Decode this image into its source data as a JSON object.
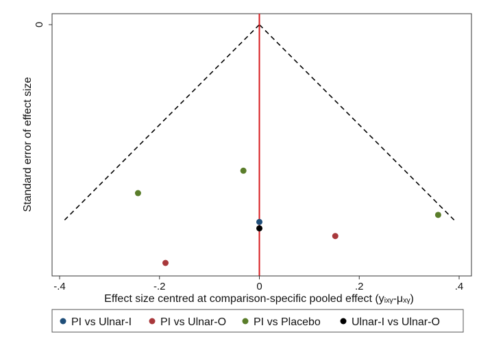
{
  "chart_data": {
    "type": "scatter",
    "title": "",
    "xlabel": "Effect size centred at comparison-specific pooled effect (yᵢₓᵧ-μₓᵧ)",
    "ylabel": "Standard error of effect size",
    "xlim": [
      -0.41,
      0.41
    ],
    "ylim": [
      0,
      0.38
    ],
    "y_reversed": true,
    "x_ticks": [
      -0.4,
      -0.2,
      0,
      0.2,
      0.4
    ],
    "x_tick_labels": [
      "-.4",
      "-.2",
      "0",
      ".2",
      ".4"
    ],
    "y_ticks": [
      0
    ],
    "y_tick_labels": [
      "0"
    ],
    "grid": false,
    "legend_position": "bottom",
    "funnel": {
      "apex": [
        0,
        0
      ],
      "left_end": [
        -0.39,
        0.305
      ],
      "right_end": [
        0.39,
        0.305
      ],
      "color": "#000000",
      "style": "dashed"
    },
    "reference_line": {
      "x": 0,
      "color": "#d7191c"
    },
    "series": [
      {
        "name": "PI vs Ulnar-I",
        "color": "#1f4e79",
        "points": [
          [
            0.0,
            0.308
          ]
        ]
      },
      {
        "name": "PI vs Ulnar-O",
        "color": "#a8383b",
        "points": [
          [
            -0.188,
            0.372
          ],
          [
            0.152,
            0.33
          ]
        ]
      },
      {
        "name": "PI vs Placebo",
        "color": "#5a7d2a",
        "points": [
          [
            -0.243,
            0.263
          ],
          [
            -0.032,
            0.228
          ],
          [
            0.358,
            0.297
          ]
        ]
      },
      {
        "name": "Ulnar-I vs Ulnar-O",
        "color": "#000000",
        "points": [
          [
            0.0,
            0.318
          ]
        ]
      }
    ]
  }
}
